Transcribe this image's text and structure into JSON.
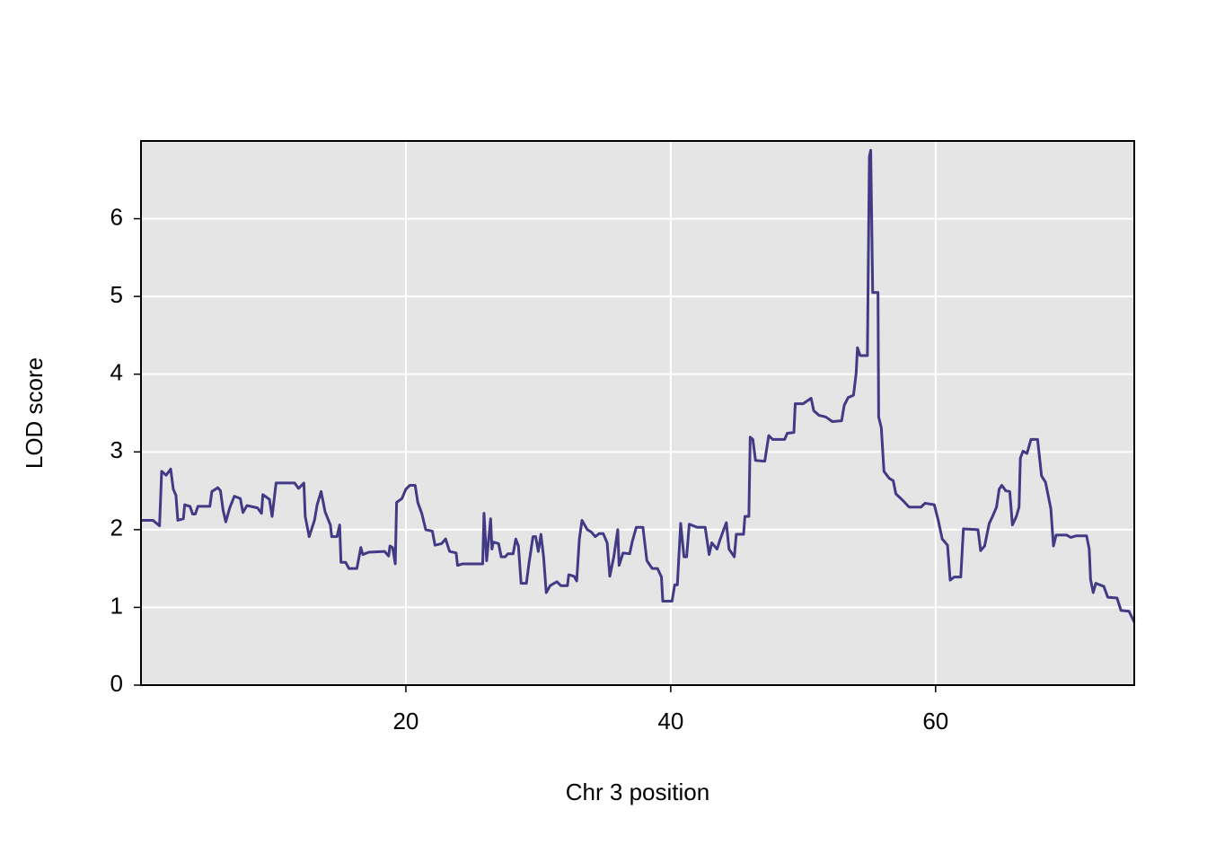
{
  "chart_data": {
    "type": "line",
    "xlabel": "Chr 3 position",
    "ylabel": "LOD score",
    "xlim": [
      0,
      75
    ],
    "ylim": [
      0,
      7
    ],
    "xticks": [
      20,
      40,
      60
    ],
    "yticks": [
      0,
      1,
      2,
      3,
      4,
      5,
      6
    ],
    "grid": true,
    "color": "#433a85",
    "background": "#e5e5e5",
    "x": [
      0,
      0.9,
      1.4,
      1.56,
      1.9,
      2.24,
      2.44,
      2.64,
      2.78,
      3.2,
      3.3,
      3.7,
      3.9,
      4.1,
      4.3,
      5.2,
      5.35,
      5.8,
      6.0,
      6.2,
      6.4,
      6.7,
      7.05,
      7.5,
      7.7,
      8.0,
      8.8,
      9.1,
      9.2,
      9.7,
      9.9,
      10.2,
      11.6,
      11.9,
      12.3,
      12.4,
      12.7,
      13.1,
      13.3,
      13.6,
      13.9,
      14.3,
      14.4,
      14.8,
      15.0,
      15.1,
      15.45,
      15.7,
      16.3,
      16.6,
      16.75,
      17.2,
      18.4,
      18.7,
      18.8,
      19.0,
      19.2,
      19.3,
      19.7,
      20.0,
      20.3,
      20.7,
      20.9,
      21.2,
      21.5,
      22.0,
      22.2,
      22.7,
      23.0,
      23.3,
      23.8,
      23.9,
      24.3,
      25.8,
      25.9,
      26.1,
      26.4,
      26.5,
      26.6,
      27.0,
      27.2,
      27.5,
      27.7,
      28.1,
      28.3,
      28.5,
      28.7,
      29.1,
      29.3,
      29.6,
      29.8,
      30.0,
      30.2,
      30.4,
      30.6,
      30.9,
      31.4,
      31.7,
      32.2,
      32.3,
      32.7,
      32.9,
      33.1,
      33.3,
      33.7,
      34.0,
      34.3,
      34.6,
      34.9,
      35.2,
      35.4,
      35.7,
      36.0,
      36.1,
      36.4,
      36.9,
      37.1,
      37.4,
      37.9,
      38.2,
      38.6,
      39.0,
      39.3,
      39.4,
      40.1,
      40.3,
      40.5,
      40.75,
      41.0,
      41.2,
      41.4,
      42.0,
      42.6,
      42.9,
      43.1,
      43.5,
      43.7,
      44.0,
      44.2,
      44.4,
      44.8,
      44.95,
      45.5,
      45.6,
      45.9,
      46.0,
      46.2,
      46.4,
      47.1,
      47.4,
      47.7,
      48.6,
      48.8,
      49.3,
      49.4,
      50.0,
      50.6,
      50.8,
      51.2,
      51.7,
      52.2,
      52.9,
      53.1,
      53.4,
      53.8,
      54.0,
      54.1,
      54.3,
      54.85,
      55.0,
      55.1,
      55.25,
      55.65,
      55.7,
      55.9,
      56.1,
      56.5,
      56.8,
      57.0,
      57.5,
      58.0,
      58.9,
      59.2,
      59.9,
      60.2,
      60.5,
      60.9,
      61.1,
      61.4,
      61.9,
      62.1,
      63.2,
      63.4,
      63.7,
      64.05,
      64.3,
      64.6,
      64.8,
      65.0,
      65.3,
      65.6,
      65.8,
      66.1,
      66.3,
      66.4,
      66.6,
      66.9,
      67.2,
      67.7,
      68.0,
      68.3,
      68.7,
      68.9,
      69.1,
      69.9,
      70.2,
      70.6,
      71.4,
      71.6,
      71.7,
      71.9,
      72.1,
      72.7,
      73.0,
      73.7,
      74.0,
      74.6,
      75.0
    ],
    "values": [
      2.12,
      2.12,
      2.05,
      2.75,
      2.7,
      2.78,
      2.52,
      2.44,
      2.12,
      2.14,
      2.32,
      2.3,
      2.2,
      2.2,
      2.3,
      2.3,
      2.49,
      2.54,
      2.5,
      2.25,
      2.1,
      2.28,
      2.43,
      2.4,
      2.22,
      2.31,
      2.28,
      2.21,
      2.45,
      2.39,
      2.17,
      2.6,
      2.6,
      2.53,
      2.6,
      2.17,
      1.91,
      2.12,
      2.32,
      2.49,
      2.23,
      2.06,
      1.91,
      1.91,
      2.06,
      1.58,
      1.58,
      1.5,
      1.5,
      1.77,
      1.68,
      1.71,
      1.72,
      1.66,
      1.79,
      1.77,
      1.56,
      2.35,
      2.4,
      2.52,
      2.57,
      2.57,
      2.35,
      2.21,
      2.0,
      1.98,
      1.8,
      1.82,
      1.88,
      1.72,
      1.7,
      1.54,
      1.56,
      1.56,
      2.21,
      1.6,
      2.14,
      1.75,
      1.84,
      1.82,
      1.65,
      1.65,
      1.69,
      1.69,
      1.88,
      1.79,
      1.31,
      1.31,
      1.57,
      1.91,
      1.91,
      1.72,
      1.94,
      1.65,
      1.19,
      1.28,
      1.33,
      1.28,
      1.28,
      1.42,
      1.4,
      1.34,
      1.88,
      2.12,
      2.0,
      1.97,
      1.91,
      1.95,
      1.95,
      1.83,
      1.4,
      1.65,
      2.0,
      1.54,
      1.7,
      1.69,
      1.85,
      2.03,
      2.03,
      1.6,
      1.5,
      1.5,
      1.39,
      1.08,
      1.08,
      1.29,
      1.29,
      2.08,
      1.65,
      1.65,
      2.07,
      2.03,
      2.03,
      1.68,
      1.83,
      1.75,
      1.86,
      2.0,
      2.09,
      1.75,
      1.65,
      1.94,
      1.94,
      2.17,
      2.17,
      3.19,
      3.16,
      2.89,
      2.88,
      3.21,
      3.16,
      3.16,
      3.24,
      3.25,
      3.62,
      3.62,
      3.69,
      3.53,
      3.47,
      3.45,
      3.39,
      3.4,
      3.6,
      3.7,
      3.73,
      4.01,
      4.34,
      4.24,
      4.24,
      6.8,
      6.88,
      5.05,
      5.05,
      3.45,
      3.31,
      2.75,
      2.66,
      2.63,
      2.46,
      2.38,
      2.29,
      2.29,
      2.34,
      2.32,
      2.12,
      1.88,
      1.8,
      1.35,
      1.39,
      1.39,
      2.01,
      2.0,
      1.73,
      1.79,
      2.08,
      2.17,
      2.29,
      2.52,
      2.57,
      2.5,
      2.49,
      2.06,
      2.17,
      2.29,
      2.92,
      3.01,
      2.98,
      3.16,
      3.16,
      2.69,
      2.61,
      2.27,
      1.79,
      1.93,
      1.93,
      1.9,
      1.92,
      1.92,
      1.75,
      1.36,
      1.19,
      1.31,
      1.27,
      1.13,
      1.12,
      0.96,
      0.95,
      0.81
    ]
  }
}
